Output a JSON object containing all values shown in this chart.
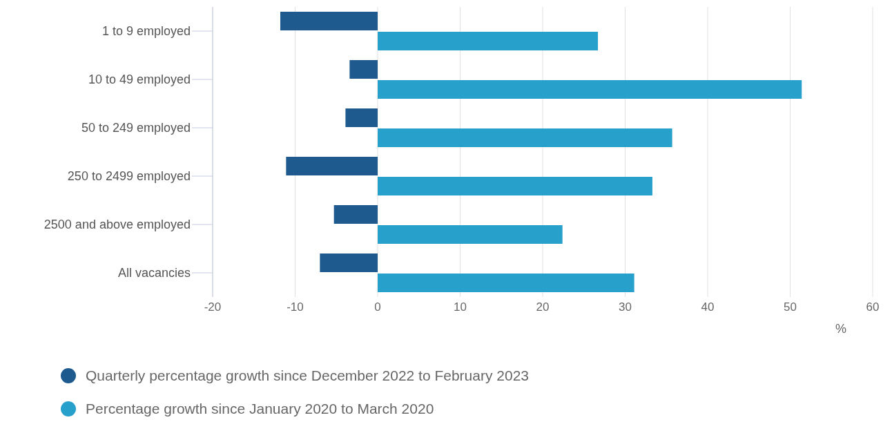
{
  "chart_data": {
    "type": "bar",
    "orientation": "horizontal",
    "categories": [
      "1 to 9 employed",
      "10 to 49 employed",
      "50 to 249 employed",
      "250 to 2499 employed",
      "2500 and above employed",
      "All vacancies"
    ],
    "series": [
      {
        "name": "Quarterly percentage growth since December 2022 to February 2023",
        "color": "#1f5a8f",
        "values": [
          -11.8,
          -3.4,
          -3.9,
          -11.1,
          -5.3,
          -7.0
        ]
      },
      {
        "name": "Percentage growth since January 2020 to March 2020",
        "color": "#27a0cc",
        "values": [
          26.7,
          51.4,
          35.7,
          33.3,
          22.4,
          31.1
        ]
      }
    ],
    "xlim": [
      -20,
      60
    ],
    "xticks": [
      -20,
      -10,
      0,
      10,
      20,
      30,
      40,
      50,
      60
    ],
    "xlabel": "%",
    "grid": "x",
    "legend": "bottom left"
  }
}
